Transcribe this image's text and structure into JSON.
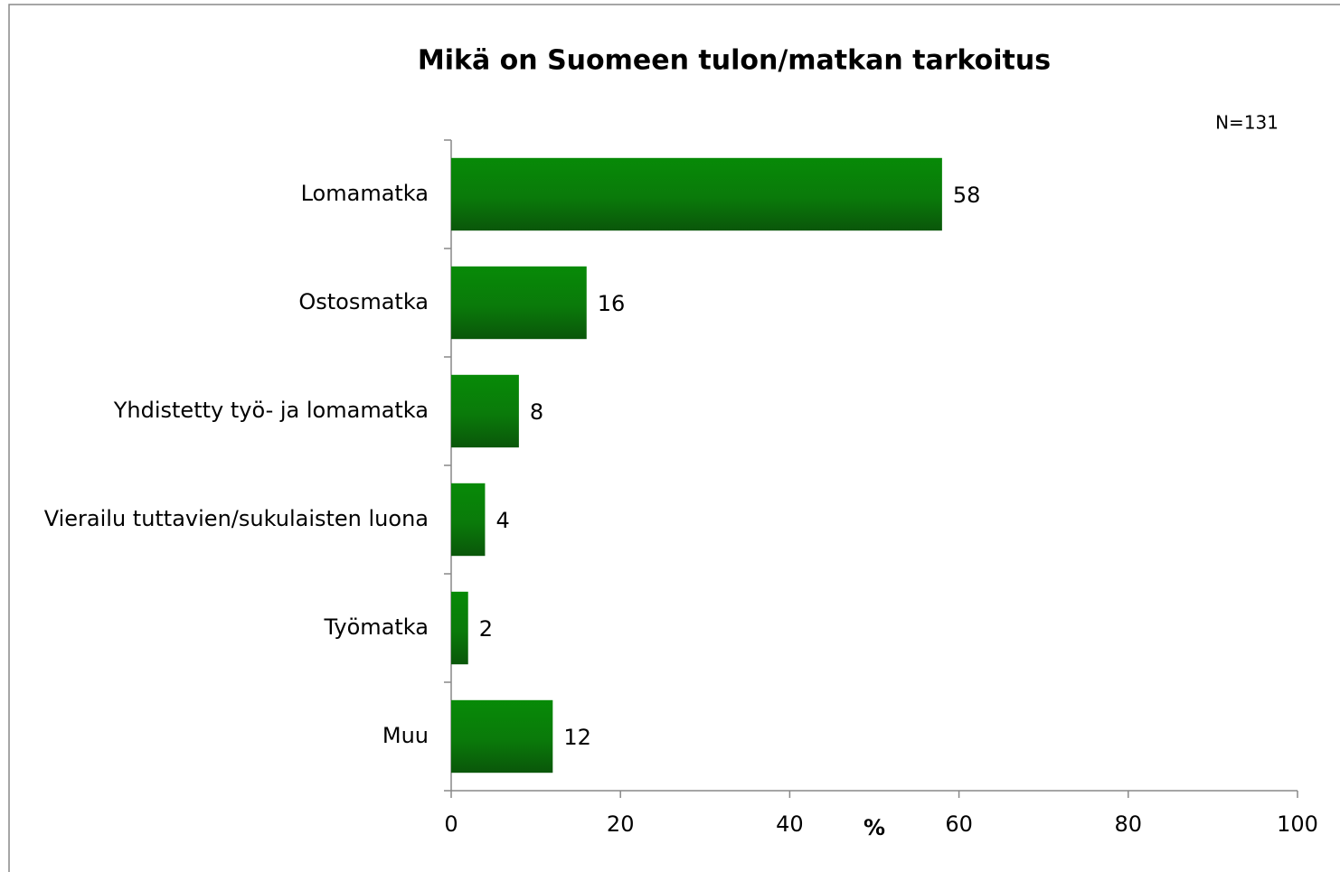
{
  "chart_data": {
    "type": "hbar",
    "title": "Mikä on Suomeen tulon/matkan tarkoitus",
    "subtitle": "N=131",
    "categories": [
      "Lomamatka",
      "Ostosmatka",
      "Yhdistetty työ- ja lomamatka",
      "Vierailu tuttavien/sukulaisten luona",
      "Työmatka",
      "Muu"
    ],
    "values": [
      58,
      16,
      8,
      4,
      2,
      12
    ],
    "color": "#078a07",
    "xlabel": "%",
    "xlim": [
      0,
      100
    ],
    "xticks": [
      0,
      20,
      40,
      60,
      80,
      100
    ],
    "grid": false
  }
}
